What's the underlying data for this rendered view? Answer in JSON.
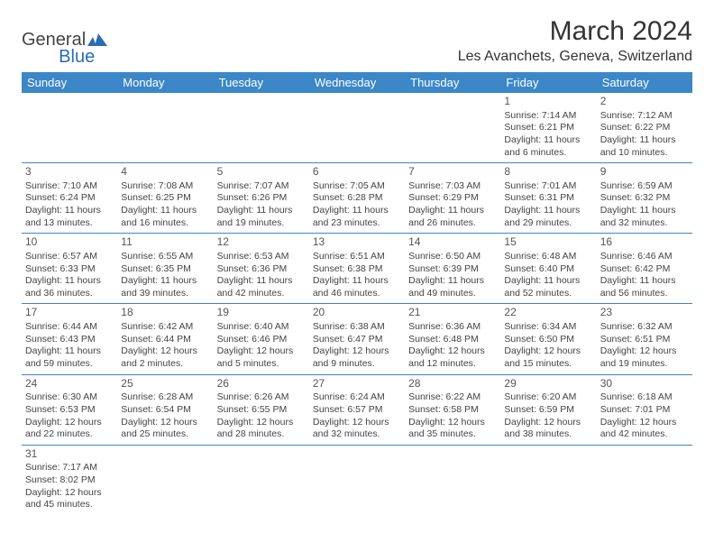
{
  "logo": {
    "part1": "General",
    "part2": "Blue"
  },
  "title": "March 2024",
  "location": "Les Avanchets, Geneva, Switzerland",
  "colors": {
    "header_bg": "#3b87c8",
    "header_text": "#ffffff",
    "border": "#3b87c8",
    "text": "#444444",
    "brand_accent": "#2a6cb4"
  },
  "dayHeaders": [
    "Sunday",
    "Monday",
    "Tuesday",
    "Wednesday",
    "Thursday",
    "Friday",
    "Saturday"
  ],
  "weeks": [
    [
      null,
      null,
      null,
      null,
      null,
      {
        "day": "1",
        "sunrise": "7:14 AM",
        "sunset": "6:21 PM",
        "daylight1": "Daylight: 11 hours",
        "daylight2": "and 6 minutes."
      },
      {
        "day": "2",
        "sunrise": "7:12 AM",
        "sunset": "6:22 PM",
        "daylight1": "Daylight: 11 hours",
        "daylight2": "and 10 minutes."
      }
    ],
    [
      {
        "day": "3",
        "sunrise": "7:10 AM",
        "sunset": "6:24 PM",
        "daylight1": "Daylight: 11 hours",
        "daylight2": "and 13 minutes."
      },
      {
        "day": "4",
        "sunrise": "7:08 AM",
        "sunset": "6:25 PM",
        "daylight1": "Daylight: 11 hours",
        "daylight2": "and 16 minutes."
      },
      {
        "day": "5",
        "sunrise": "7:07 AM",
        "sunset": "6:26 PM",
        "daylight1": "Daylight: 11 hours",
        "daylight2": "and 19 minutes."
      },
      {
        "day": "6",
        "sunrise": "7:05 AM",
        "sunset": "6:28 PM",
        "daylight1": "Daylight: 11 hours",
        "daylight2": "and 23 minutes."
      },
      {
        "day": "7",
        "sunrise": "7:03 AM",
        "sunset": "6:29 PM",
        "daylight1": "Daylight: 11 hours",
        "daylight2": "and 26 minutes."
      },
      {
        "day": "8",
        "sunrise": "7:01 AM",
        "sunset": "6:31 PM",
        "daylight1": "Daylight: 11 hours",
        "daylight2": "and 29 minutes."
      },
      {
        "day": "9",
        "sunrise": "6:59 AM",
        "sunset": "6:32 PM",
        "daylight1": "Daylight: 11 hours",
        "daylight2": "and 32 minutes."
      }
    ],
    [
      {
        "day": "10",
        "sunrise": "6:57 AM",
        "sunset": "6:33 PM",
        "daylight1": "Daylight: 11 hours",
        "daylight2": "and 36 minutes."
      },
      {
        "day": "11",
        "sunrise": "6:55 AM",
        "sunset": "6:35 PM",
        "daylight1": "Daylight: 11 hours",
        "daylight2": "and 39 minutes."
      },
      {
        "day": "12",
        "sunrise": "6:53 AM",
        "sunset": "6:36 PM",
        "daylight1": "Daylight: 11 hours",
        "daylight2": "and 42 minutes."
      },
      {
        "day": "13",
        "sunrise": "6:51 AM",
        "sunset": "6:38 PM",
        "daylight1": "Daylight: 11 hours",
        "daylight2": "and 46 minutes."
      },
      {
        "day": "14",
        "sunrise": "6:50 AM",
        "sunset": "6:39 PM",
        "daylight1": "Daylight: 11 hours",
        "daylight2": "and 49 minutes."
      },
      {
        "day": "15",
        "sunrise": "6:48 AM",
        "sunset": "6:40 PM",
        "daylight1": "Daylight: 11 hours",
        "daylight2": "and 52 minutes."
      },
      {
        "day": "16",
        "sunrise": "6:46 AM",
        "sunset": "6:42 PM",
        "daylight1": "Daylight: 11 hours",
        "daylight2": "and 56 minutes."
      }
    ],
    [
      {
        "day": "17",
        "sunrise": "6:44 AM",
        "sunset": "6:43 PM",
        "daylight1": "Daylight: 11 hours",
        "daylight2": "and 59 minutes."
      },
      {
        "day": "18",
        "sunrise": "6:42 AM",
        "sunset": "6:44 PM",
        "daylight1": "Daylight: 12 hours",
        "daylight2": "and 2 minutes."
      },
      {
        "day": "19",
        "sunrise": "6:40 AM",
        "sunset": "6:46 PM",
        "daylight1": "Daylight: 12 hours",
        "daylight2": "and 5 minutes."
      },
      {
        "day": "20",
        "sunrise": "6:38 AM",
        "sunset": "6:47 PM",
        "daylight1": "Daylight: 12 hours",
        "daylight2": "and 9 minutes."
      },
      {
        "day": "21",
        "sunrise": "6:36 AM",
        "sunset": "6:48 PM",
        "daylight1": "Daylight: 12 hours",
        "daylight2": "and 12 minutes."
      },
      {
        "day": "22",
        "sunrise": "6:34 AM",
        "sunset": "6:50 PM",
        "daylight1": "Daylight: 12 hours",
        "daylight2": "and 15 minutes."
      },
      {
        "day": "23",
        "sunrise": "6:32 AM",
        "sunset": "6:51 PM",
        "daylight1": "Daylight: 12 hours",
        "daylight2": "and 19 minutes."
      }
    ],
    [
      {
        "day": "24",
        "sunrise": "6:30 AM",
        "sunset": "6:53 PM",
        "daylight1": "Daylight: 12 hours",
        "daylight2": "and 22 minutes."
      },
      {
        "day": "25",
        "sunrise": "6:28 AM",
        "sunset": "6:54 PM",
        "daylight1": "Daylight: 12 hours",
        "daylight2": "and 25 minutes."
      },
      {
        "day": "26",
        "sunrise": "6:26 AM",
        "sunset": "6:55 PM",
        "daylight1": "Daylight: 12 hours",
        "daylight2": "and 28 minutes."
      },
      {
        "day": "27",
        "sunrise": "6:24 AM",
        "sunset": "6:57 PM",
        "daylight1": "Daylight: 12 hours",
        "daylight2": "and 32 minutes."
      },
      {
        "day": "28",
        "sunrise": "6:22 AM",
        "sunset": "6:58 PM",
        "daylight1": "Daylight: 12 hours",
        "daylight2": "and 35 minutes."
      },
      {
        "day": "29",
        "sunrise": "6:20 AM",
        "sunset": "6:59 PM",
        "daylight1": "Daylight: 12 hours",
        "daylight2": "and 38 minutes."
      },
      {
        "day": "30",
        "sunrise": "6:18 AM",
        "sunset": "7:01 PM",
        "daylight1": "Daylight: 12 hours",
        "daylight2": "and 42 minutes."
      }
    ],
    [
      {
        "day": "31",
        "sunrise": "7:17 AM",
        "sunset": "8:02 PM",
        "daylight1": "Daylight: 12 hours",
        "daylight2": "and 45 minutes."
      },
      null,
      null,
      null,
      null,
      null,
      null
    ]
  ]
}
